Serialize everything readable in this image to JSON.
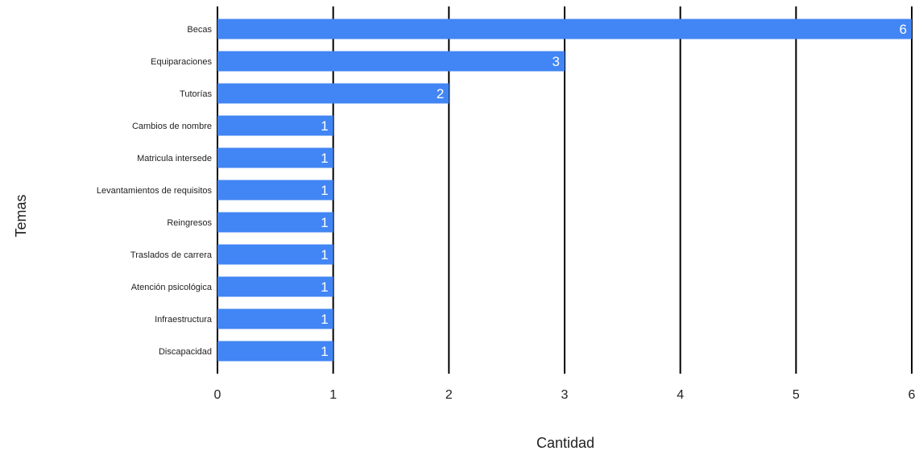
{
  "chart_data": {
    "type": "bar",
    "orientation": "horizontal",
    "categories": [
      "Becas",
      "Equiparaciones",
      "Tutorías",
      "Cambios de nombre",
      "Matricula intersede",
      "Levantamientos de requisitos",
      "Reingresos",
      "Traslados de carrera",
      "Atención psicológica",
      "Infraestructura",
      "Discapacidad"
    ],
    "values": [
      6,
      3,
      2,
      1,
      1,
      1,
      1,
      1,
      1,
      1,
      1
    ],
    "xlabel": "Cantidad",
    "ylabel": "Temas",
    "xlim": [
      0,
      6
    ],
    "x_ticks": [
      "0",
      "1",
      "2",
      "3",
      "4",
      "5",
      "6"
    ],
    "grid": true,
    "data_labels": true,
    "colors": {
      "bar": "#4285f4",
      "grid": "#000000",
      "label_text": "#ffffff"
    }
  }
}
